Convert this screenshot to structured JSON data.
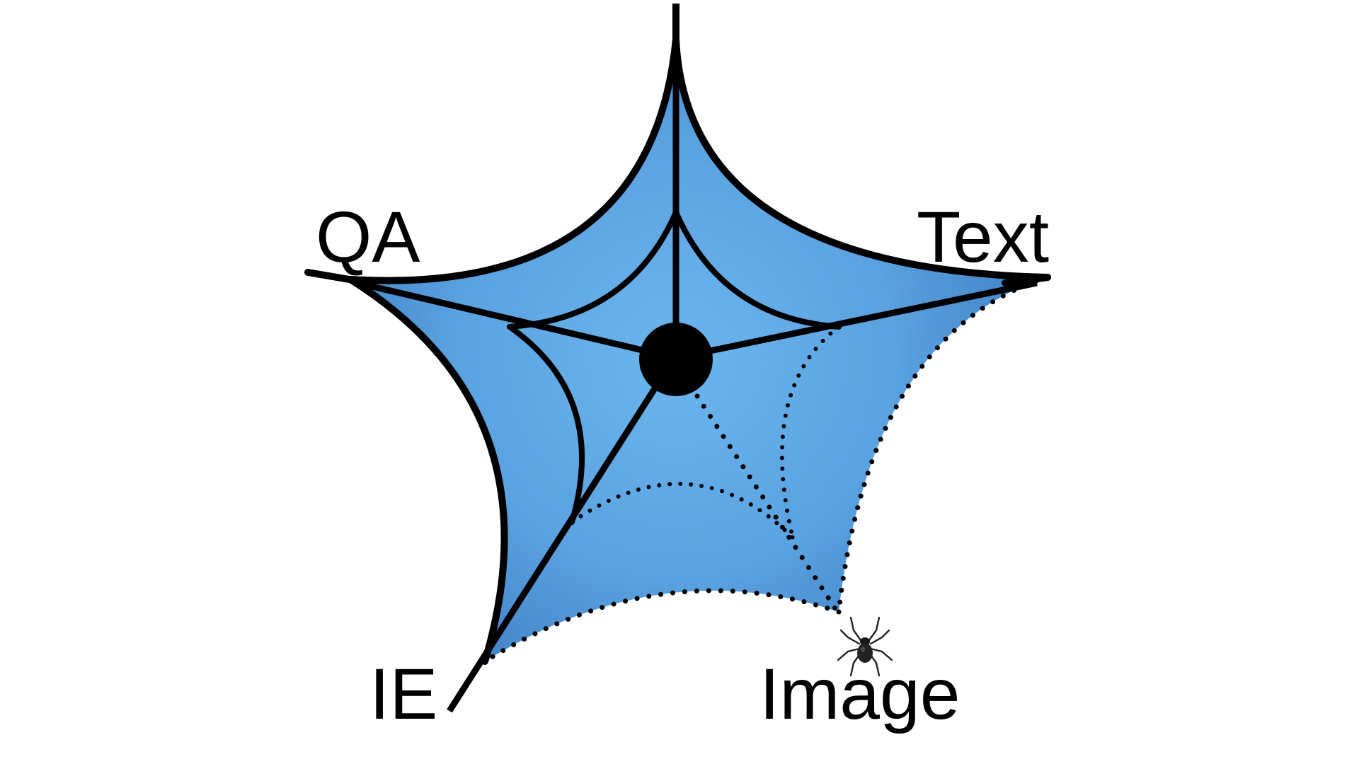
{
  "labels": {
    "qa": "QA",
    "text": "Text",
    "ie": "IE",
    "image": "Image"
  },
  "icons": {
    "spider": "spider-icon"
  },
  "colors": {
    "web_fill_light": "#6cb6ef",
    "web_fill_dark": "#3c7cc2",
    "stroke": "#000000",
    "background": "#ffffff"
  }
}
